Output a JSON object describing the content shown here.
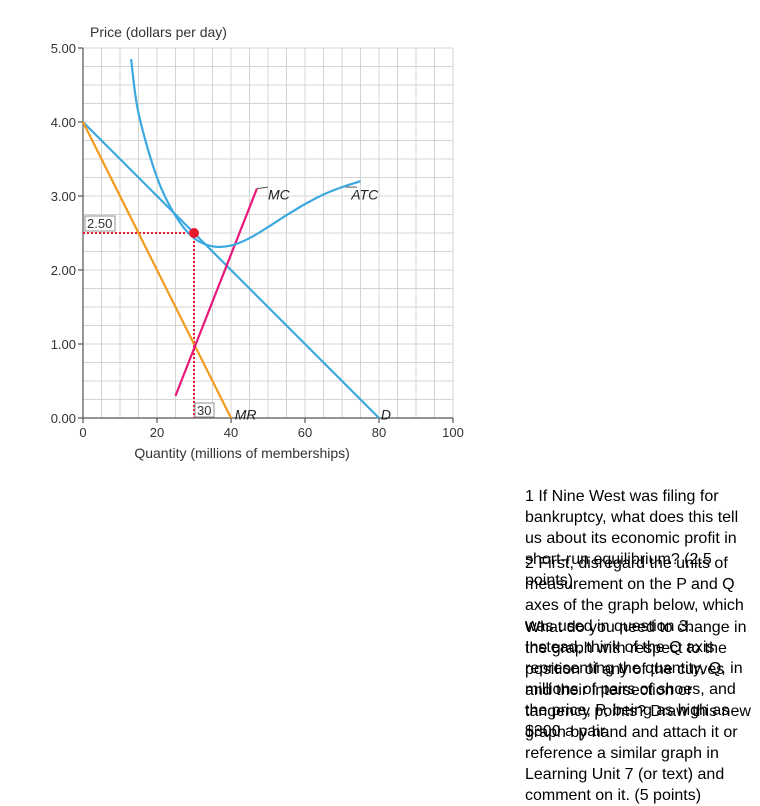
{
  "chart_data": {
    "type": "line",
    "ylabel": "Price (dollars per day)",
    "xlabel": "Quantity (millions of memberships)",
    "xlim": [
      0,
      100
    ],
    "ylim": [
      0,
      5
    ],
    "x_ticks": [
      {
        "value": 0,
        "label": "0"
      },
      {
        "value": 20,
        "label": "20"
      },
      {
        "value": 40,
        "label": "40"
      },
      {
        "value": 60,
        "label": "60"
      },
      {
        "value": 80,
        "label": "80"
      },
      {
        "value": 100,
        "label": "100"
      }
    ],
    "y_ticks": [
      {
        "value": 0,
        "label": "0.00"
      },
      {
        "value": 1,
        "label": "1.00"
      },
      {
        "value": 2,
        "label": "2.00"
      },
      {
        "value": 3,
        "label": "3.00"
      },
      {
        "value": 4,
        "label": "4.00"
      },
      {
        "value": 5,
        "label": "5.00"
      }
    ],
    "grid": true,
    "series": [
      {
        "name": "D",
        "color": "#3ba8e0",
        "x": [
          0,
          80
        ],
        "y": [
          4.0,
          0.0
        ]
      },
      {
        "name": "MR",
        "color": "#f29b1d",
        "x": [
          0,
          40
        ],
        "y": [
          4.0,
          0.0
        ]
      },
      {
        "name": "MC",
        "color": "#e8197a",
        "x": [
          25,
          47
        ],
        "y": [
          0.3,
          3.1
        ]
      },
      {
        "name": "ATC",
        "color": "#3ba8e0",
        "x": [
          13,
          15,
          20,
          25,
          30,
          35,
          40,
          45,
          50,
          55,
          60,
          65,
          70,
          75
        ],
        "y": [
          4.85,
          4.12,
          3.25,
          2.73,
          2.43,
          2.32,
          2.33,
          2.43,
          2.58,
          2.74,
          2.89,
          3.02,
          3.12,
          3.2
        ]
      }
    ],
    "annotations": [
      {
        "text": "2.50",
        "x": 0,
        "y": 2.5
      },
      {
        "text": "30",
        "x": 30,
        "y": 0
      }
    ],
    "highlight_point": {
      "x": 30,
      "y": 2.5
    }
  },
  "questions": {
    "q1": "1 If Nine West was filing for bankruptcy, what does this tell us about its economic profit in short-run equilibrium? (2.5 points)",
    "q2a": "2 First, disregard the units of measurement on the P and Q axes of the graph below, which was used in question 3. Instead, think of the Q axis representing the quantity, Q, in millions of pairs of shoes, and the price, P, being as high as $300 a pair.",
    "q2b": "What do you need to change in the graph with respect to the position of any of the curves and their intersection or tangency points? Draw this new graph by hand and attach it or reference a similar graph in Learning Unit 7 (or text) and comment on it. (5 points)"
  }
}
